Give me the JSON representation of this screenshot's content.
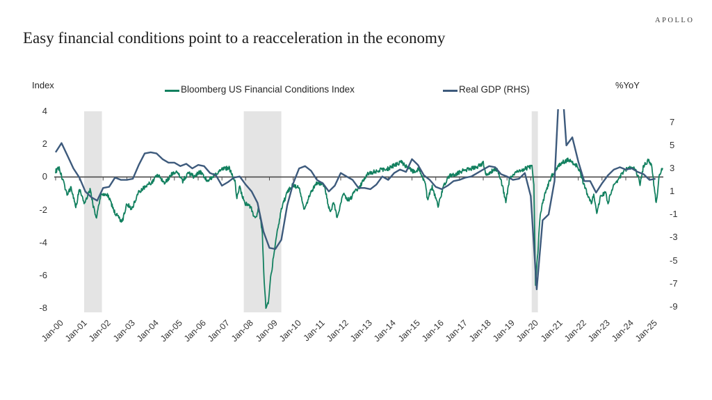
{
  "header": {
    "brand": "APOLLO",
    "title": "Easy financial conditions point to a reacceleration in the economy"
  },
  "chart_data": {
    "type": "line",
    "title": "Easy financial conditions point to a reacceleration in the economy",
    "grid": "off",
    "legend_position": "top",
    "left_axis": {
      "label": "Index",
      "ticks": [
        4,
        2,
        0,
        -2,
        -4,
        -6,
        -8
      ],
      "range": [
        -8.21,
        4.09
      ]
    },
    "right_axis": {
      "label": "%YoY",
      "ticks": [
        7,
        5,
        3,
        1,
        -1,
        -3,
        -5,
        -7,
        -9
      ],
      "range": [
        -9.44,
        8.08
      ]
    },
    "x_axis": {
      "range": [
        2000.0,
        2025.58
      ],
      "tick_years": [
        2000,
        2001,
        2002,
        2003,
        2004,
        2005,
        2006,
        2007,
        2008,
        2009,
        2010,
        2011,
        2012,
        2013,
        2014,
        2015,
        2016,
        2017,
        2018,
        2019,
        2020,
        2021,
        2022,
        2023,
        2024,
        2025
      ],
      "tick_labels": [
        "Jan-00",
        "Jan-01",
        "Jan-02",
        "Jan-03",
        "Jan-04",
        "Jan-05",
        "Jan-06",
        "Jan-07",
        "Jan-08",
        "Jan-09",
        "Jan-10",
        "Jan-11",
        "Jan-12",
        "Jan-13",
        "Jan-14",
        "Jan-15",
        "Jan-16",
        "Jan-17",
        "Jan-18",
        "Jan-19",
        "Jan-20",
        "Jan-21",
        "Jan-22",
        "Jan-23",
        "Jan-24",
        "Jan-25"
      ]
    },
    "colors": {
      "fci": "#12805f",
      "gdp": "#3d5a7c",
      "recession_band": "#e4e4e4",
      "zero_line": "#4a4a4a"
    },
    "legend": [
      {
        "label": "Bloomberg US Financial Conditions Index",
        "color": "#12805f"
      },
      {
        "label": "Real GDP (RHS)",
        "color": "#3d5a7c"
      }
    ],
    "recession_bands": [
      [
        2001.2,
        2001.95
      ],
      [
        2007.92,
        2009.5
      ],
      [
        2020.04,
        2020.3
      ]
    ],
    "series": [
      {
        "name": "Bloomberg US Financial Conditions Index",
        "axis": "left",
        "color": "#12805f",
        "noise": 0.13,
        "anchors": [
          [
            2000.0,
            0.35
          ],
          [
            2000.15,
            0.55
          ],
          [
            2000.3,
            -0.2
          ],
          [
            2000.5,
            -1.1
          ],
          [
            2000.65,
            -0.6
          ],
          [
            2000.85,
            -1.9
          ],
          [
            2001.0,
            -0.7
          ],
          [
            2001.2,
            -1.6
          ],
          [
            2001.45,
            -0.8
          ],
          [
            2001.7,
            -2.55
          ],
          [
            2001.9,
            -1.1
          ],
          [
            2002.2,
            -1.1
          ],
          [
            2002.5,
            -2.2
          ],
          [
            2002.8,
            -2.75
          ],
          [
            2003.0,
            -1.6
          ],
          [
            2003.2,
            -1.95
          ],
          [
            2003.5,
            -0.9
          ],
          [
            2003.75,
            -0.6
          ],
          [
            2004.1,
            -0.25
          ],
          [
            2004.3,
            0.15
          ],
          [
            2004.6,
            -0.35
          ],
          [
            2004.9,
            0.2
          ],
          [
            2005.1,
            0.3
          ],
          [
            2005.35,
            -0.25
          ],
          [
            2005.6,
            0.25
          ],
          [
            2005.8,
            0.05
          ],
          [
            2006.1,
            0.3
          ],
          [
            2006.4,
            -0.25
          ],
          [
            2006.7,
            0.15
          ],
          [
            2007.0,
            0.5
          ],
          [
            2007.3,
            0.55
          ],
          [
            2007.55,
            -0.3
          ],
          [
            2007.63,
            -1.25
          ],
          [
            2007.75,
            -0.6
          ],
          [
            2007.95,
            -1.6
          ],
          [
            2008.2,
            -1.8
          ],
          [
            2008.4,
            -2.6
          ],
          [
            2008.55,
            -1.9
          ],
          [
            2008.7,
            -3.4
          ],
          [
            2008.78,
            -6.5
          ],
          [
            2008.85,
            -7.9
          ],
          [
            2008.95,
            -7.6
          ],
          [
            2009.05,
            -6.2
          ],
          [
            2009.25,
            -4.0
          ],
          [
            2009.5,
            -2.0
          ],
          [
            2009.75,
            -0.9
          ],
          [
            2010.0,
            -0.45
          ],
          [
            2010.25,
            -0.7
          ],
          [
            2010.45,
            -1.9
          ],
          [
            2010.6,
            -1.5
          ],
          [
            2010.75,
            -0.9
          ],
          [
            2011.0,
            -0.35
          ],
          [
            2011.3,
            -0.5
          ],
          [
            2011.55,
            -2.2
          ],
          [
            2011.7,
            -1.5
          ],
          [
            2011.85,
            -2.5
          ],
          [
            2012.1,
            -1.0
          ],
          [
            2012.35,
            -1.45
          ],
          [
            2012.6,
            -0.9
          ],
          [
            2012.85,
            -0.5
          ],
          [
            2013.1,
            0.15
          ],
          [
            2013.4,
            0.3
          ],
          [
            2013.7,
            0.45
          ],
          [
            2014.0,
            0.5
          ],
          [
            2014.3,
            0.75
          ],
          [
            2014.55,
            0.9
          ],
          [
            2014.8,
            0.6
          ],
          [
            2015.05,
            0.35
          ],
          [
            2015.3,
            0.45
          ],
          [
            2015.55,
            -0.3
          ],
          [
            2015.65,
            -1.35
          ],
          [
            2015.85,
            -0.6
          ],
          [
            2016.1,
            -1.75
          ],
          [
            2016.35,
            -0.5
          ],
          [
            2016.6,
            0.1
          ],
          [
            2016.85,
            0.2
          ],
          [
            2017.1,
            0.35
          ],
          [
            2017.4,
            0.5
          ],
          [
            2017.7,
            0.6
          ],
          [
            2018.0,
            0.85
          ],
          [
            2018.15,
            0.0
          ],
          [
            2018.35,
            0.35
          ],
          [
            2018.6,
            0.45
          ],
          [
            2018.8,
            -0.5
          ],
          [
            2018.95,
            -1.5
          ],
          [
            2019.1,
            -0.15
          ],
          [
            2019.35,
            0.3
          ],
          [
            2019.6,
            0.4
          ],
          [
            2019.85,
            0.55
          ],
          [
            2020.05,
            0.65
          ],
          [
            2020.13,
            -0.5
          ],
          [
            2020.2,
            -6.5
          ],
          [
            2020.28,
            -5.0
          ],
          [
            2020.4,
            -2.2
          ],
          [
            2020.55,
            -1.3
          ],
          [
            2020.7,
            -0.6
          ],
          [
            2020.9,
            0.1
          ],
          [
            2021.1,
            0.55
          ],
          [
            2021.35,
            0.9
          ],
          [
            2021.6,
            1.05
          ],
          [
            2021.8,
            0.85
          ],
          [
            2022.0,
            0.6
          ],
          [
            2022.2,
            -0.3
          ],
          [
            2022.4,
            -1.1
          ],
          [
            2022.55,
            -1.6
          ],
          [
            2022.65,
            -1.0
          ],
          [
            2022.78,
            -2.15
          ],
          [
            2022.95,
            -1.1
          ],
          [
            2023.15,
            -1.0
          ],
          [
            2023.25,
            -1.6
          ],
          [
            2023.45,
            -0.6
          ],
          [
            2023.7,
            -0.1
          ],
          [
            2023.95,
            0.4
          ],
          [
            2024.15,
            0.6
          ],
          [
            2024.4,
            0.55
          ],
          [
            2024.6,
            -0.4
          ],
          [
            2024.75,
            0.7
          ],
          [
            2024.95,
            1.0
          ],
          [
            2025.1,
            0.6
          ],
          [
            2025.28,
            -1.65
          ],
          [
            2025.4,
            0.0
          ],
          [
            2025.55,
            0.55
          ]
        ]
      },
      {
        "name": "Real GDP (RHS)",
        "axis": "right",
        "color": "#3d5a7c",
        "x_start": 2000.0,
        "x_step": 0.25,
        "values": [
          4.4,
          5.2,
          4.1,
          3.0,
          2.2,
          1.0,
          0.5,
          0.2,
          1.3,
          1.4,
          2.2,
          2.0,
          2.0,
          2.1,
          3.3,
          4.3,
          4.4,
          4.3,
          3.8,
          3.5,
          3.5,
          3.2,
          3.4,
          3.0,
          3.3,
          3.2,
          2.6,
          2.4,
          1.5,
          1.8,
          2.2,
          2.3,
          1.6,
          1.0,
          0.0,
          -2.5,
          -3.9,
          -4.0,
          -3.2,
          -0.2,
          1.7,
          3.0,
          3.2,
          2.8,
          2.0,
          1.7,
          1.0,
          1.5,
          2.6,
          2.3,
          2.0,
          1.3,
          1.3,
          1.2,
          1.6,
          2.3,
          2.0,
          2.6,
          2.9,
          2.7,
          3.8,
          3.3,
          2.4,
          2.0,
          1.4,
          1.2,
          1.5,
          1.9,
          2.0,
          2.2,
          2.3,
          2.6,
          2.9,
          3.2,
          3.1,
          2.5,
          2.3,
          2.0,
          2.1,
          2.6,
          0.6,
          -7.5,
          -1.5,
          -1.0,
          1.9,
          12.4,
          5.0,
          5.7,
          3.6,
          1.9,
          1.9,
          0.9,
          1.7,
          2.4,
          2.9,
          3.1,
          2.9,
          3.0,
          2.7,
          2.5,
          2.0,
          2.1
        ]
      }
    ]
  }
}
